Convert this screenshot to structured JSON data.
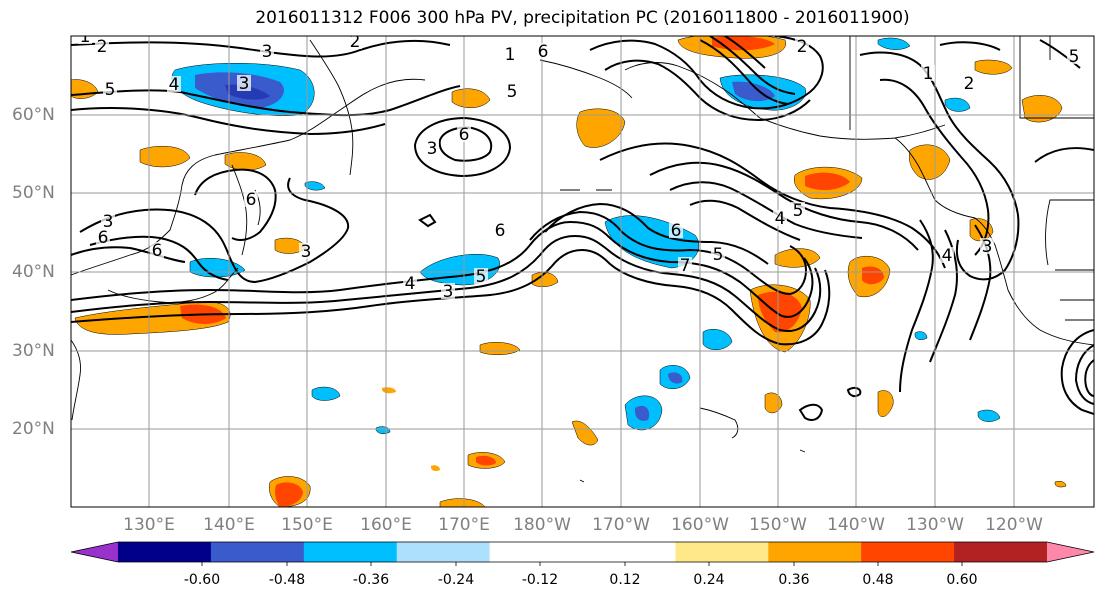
{
  "title": "2016011312 F006 300 hPa PV, precipitation PC (2016011800 - 2016011900)",
  "lat_labels": [
    "60°N",
    "50°N",
    "40°N",
    "30°N",
    "20°N"
  ],
  "lon_labels": [
    "130°E",
    "140°E",
    "150°E",
    "160°E",
    "170°E",
    "180°W",
    "170°W",
    "160°W",
    "150°W",
    "140°W",
    "130°W",
    "120°W"
  ],
  "colorbar": {
    "colors": [
      "#9932CC",
      "#00008B",
      "#3A5BCB",
      "#00BFFF",
      "#ADE0FC",
      "#FFFFFF",
      "#FFFFFF",
      "#FFE88A",
      "#FFA500",
      "#FF4500",
      "#B22222",
      "#FF88AA"
    ],
    "tick_labels": [
      "-0.60",
      "-0.48",
      "-0.36",
      "-0.24",
      "-0.12",
      "0.12",
      "0.24",
      "0.36",
      "0.48",
      "0.60"
    ]
  },
  "contour_labels": [
    "2",
    "3",
    "1",
    "2",
    "5",
    "4",
    "3",
    "6",
    "1",
    "6",
    "3",
    "2",
    "1",
    "2",
    "6",
    "5",
    "6",
    "5",
    "3",
    "4",
    "3",
    "6",
    "6",
    "6",
    "7",
    "5",
    "4",
    "3",
    "5",
    "4",
    "5",
    "3"
  ]
}
